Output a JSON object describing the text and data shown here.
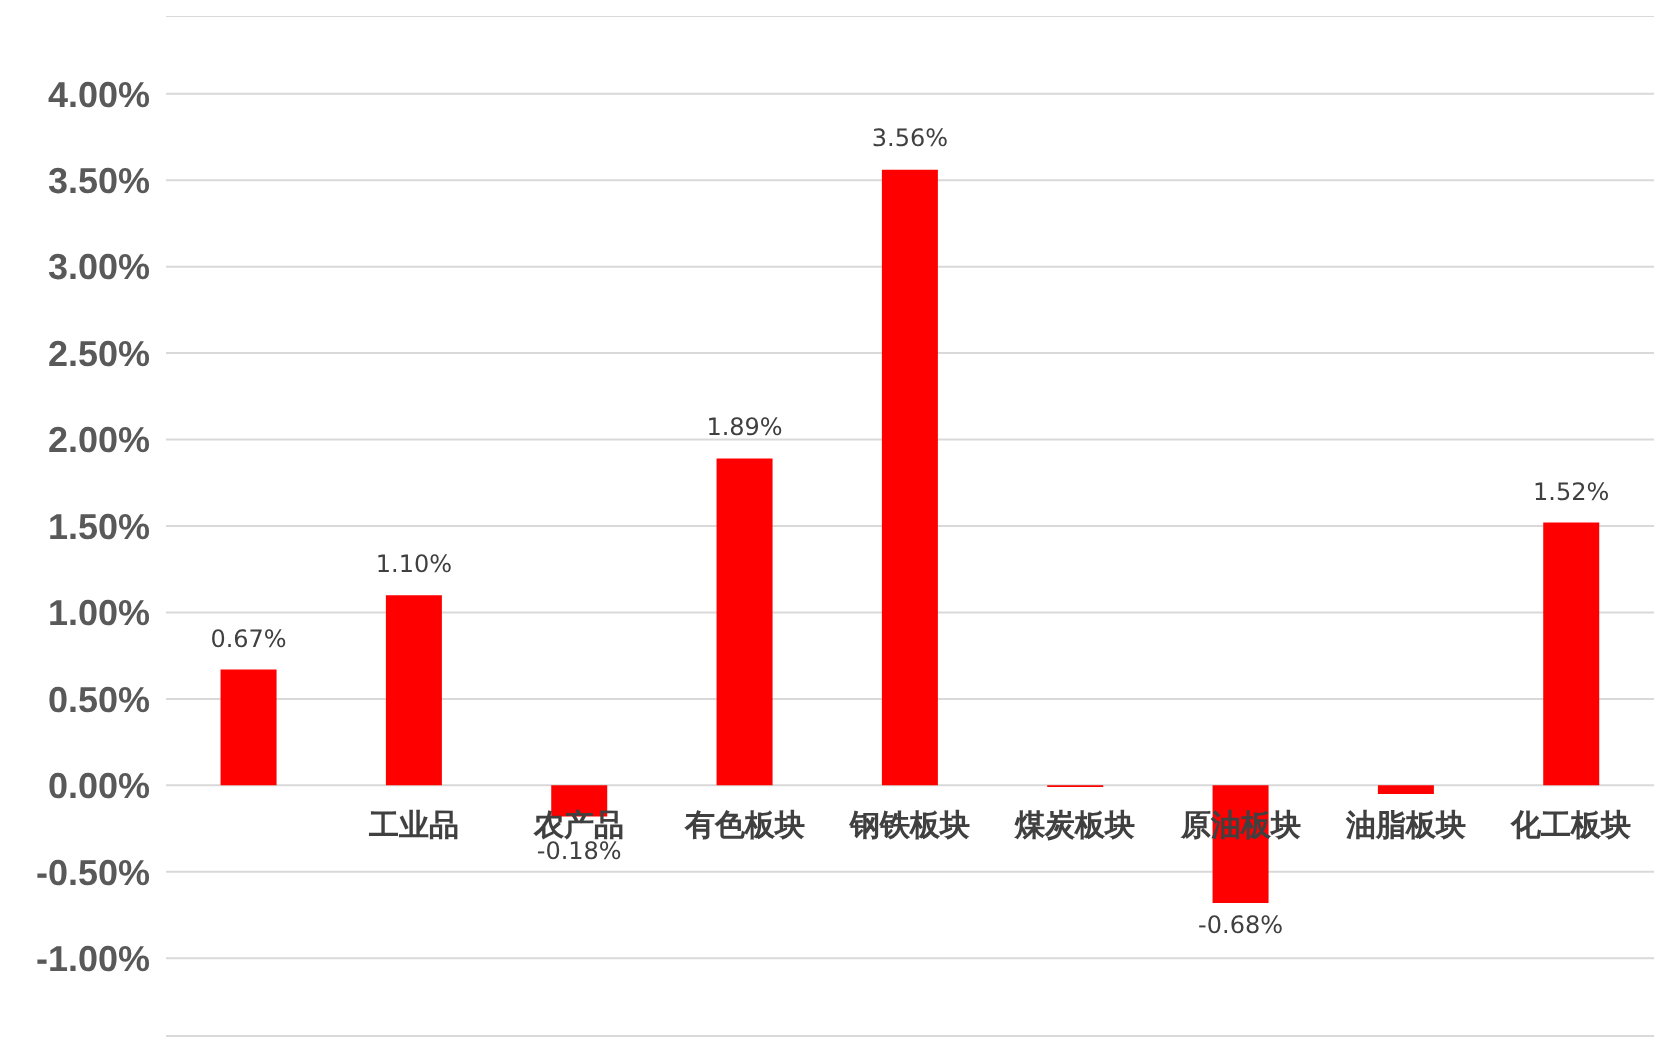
{
  "chart_data": {
    "type": "bar",
    "categories": [
      null,
      "工业品",
      "农产品",
      "有色板块",
      "钢铁板块",
      "煤炭板块",
      "原油板块",
      "油脂板块",
      "化工板块"
    ],
    "values": [
      0.67,
      1.1,
      -0.18,
      1.89,
      3.56,
      -0.01,
      -0.68,
      -0.05,
      1.52
    ],
    "value_labels": [
      "0.67%",
      "1.10%",
      "-0.18%",
      "1.89%",
      "3.56%",
      null,
      "-0.68%",
      null,
      "1.52%"
    ],
    "color": "#ff0000",
    "ylim": [
      -1.45,
      4.45
    ],
    "yticks": [
      {
        "value": -1,
        "label": "-1.00%"
      },
      {
        "value": -0.5,
        "label": "-0.50%"
      },
      {
        "value": 0,
        "label": "0.00%"
      },
      {
        "value": 0.5,
        "label": "0.50%"
      },
      {
        "value": 1,
        "label": "1.00%"
      },
      {
        "value": 1.5,
        "label": "1.50%"
      },
      {
        "value": 2,
        "label": "2.00%"
      },
      {
        "value": 2.5,
        "label": "2.50%"
      },
      {
        "value": 3,
        "label": "3.00%"
      },
      {
        "value": 3.5,
        "label": "3.50%"
      },
      {
        "value": 4,
        "label": "4.00%"
      }
    ],
    "grid": "y"
  }
}
